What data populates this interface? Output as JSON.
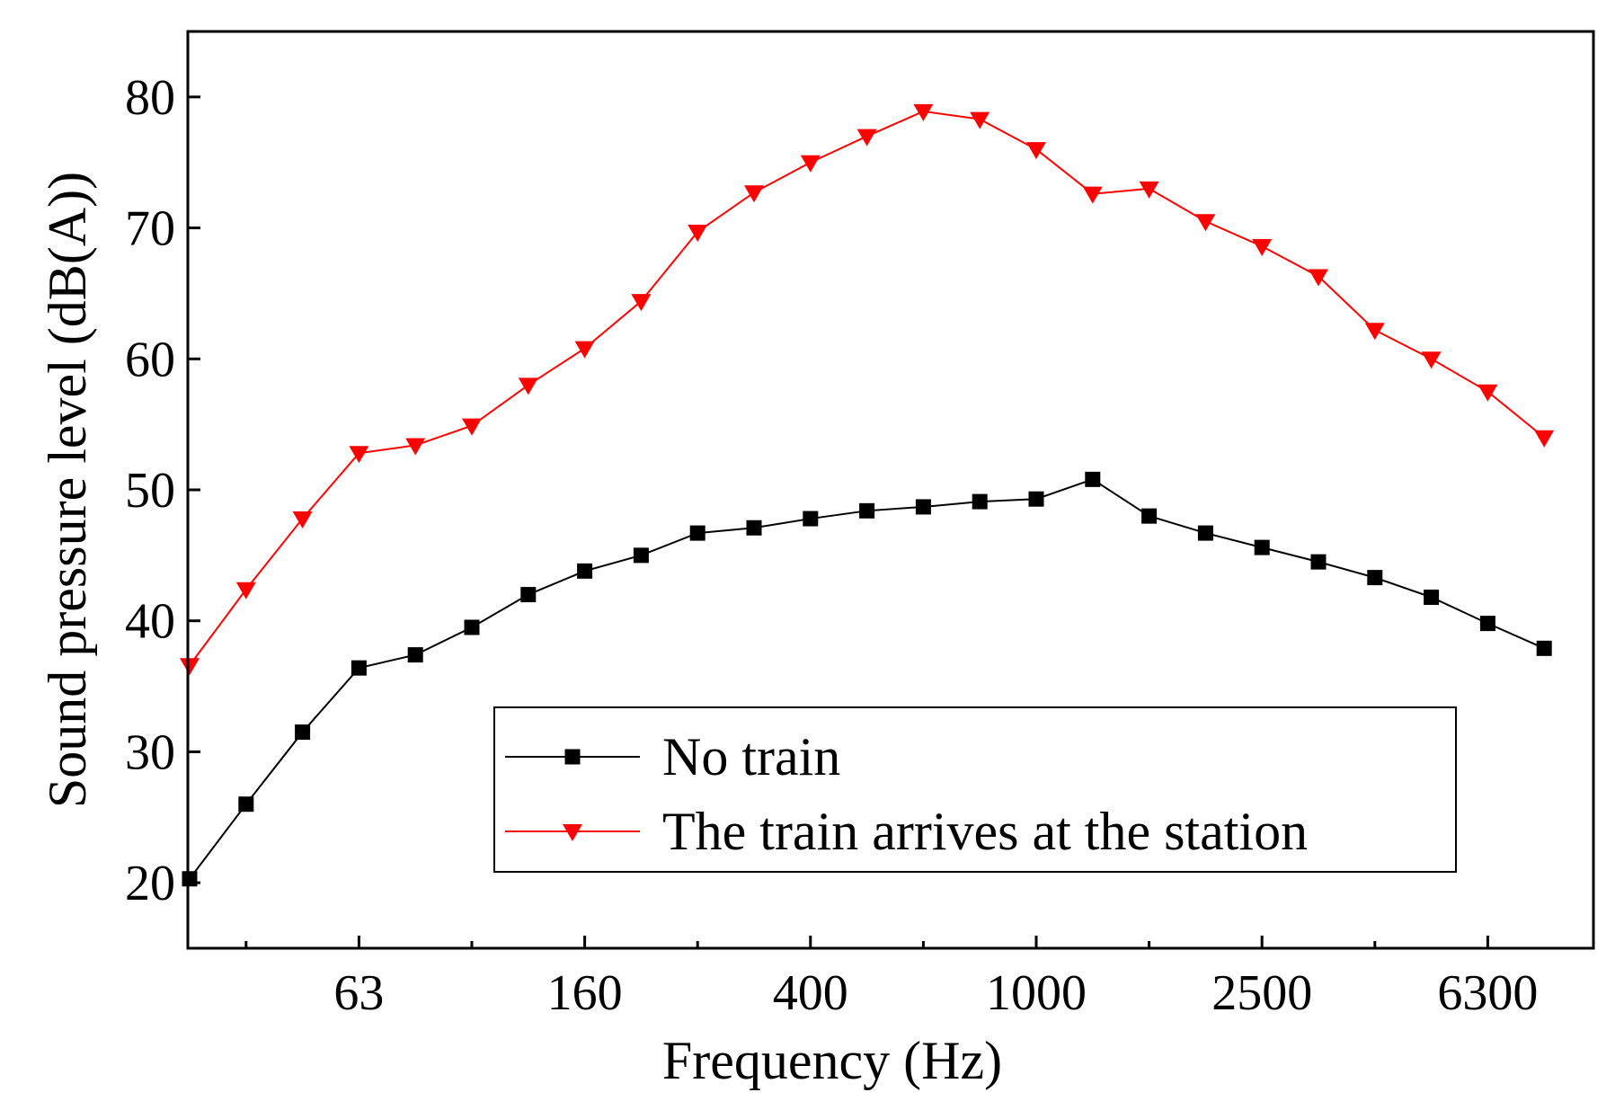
{
  "chart_data": {
    "type": "line",
    "title": "",
    "xlabel": "Frequency (Hz)",
    "ylabel": "Sound pressure level (dB(A))",
    "ylim": [
      15,
      85
    ],
    "yticks": [
      20,
      30,
      40,
      50,
      60,
      70,
      80
    ],
    "x_scale": "one-third octave bands (categorical)",
    "x_band_count": 25,
    "xtick_labels": [
      {
        "band_index": 3,
        "label": "63"
      },
      {
        "band_index": 7,
        "label": "160"
      },
      {
        "band_index": 11,
        "label": "400"
      },
      {
        "band_index": 15,
        "label": "1000"
      },
      {
        "band_index": 19,
        "label": "2500"
      },
      {
        "band_index": 23,
        "label": "6300"
      }
    ],
    "grid": false,
    "legend_position": "bottom-right",
    "series": [
      {
        "name": "No train",
        "color": "#000000",
        "marker": "square",
        "values": [
          20.3,
          26.0,
          31.5,
          36.4,
          37.4,
          39.5,
          42.0,
          43.8,
          45.0,
          46.7,
          47.1,
          47.8,
          48.4,
          48.7,
          49.1,
          49.3,
          50.8,
          48.0,
          46.7,
          45.6,
          44.5,
          43.3,
          41.8,
          39.8,
          37.9
        ]
      },
      {
        "name": "The train arrives at the station",
        "color": "#ff0000",
        "marker": "triangle-down",
        "values": [
          36.6,
          42.4,
          47.8,
          52.8,
          53.4,
          54.9,
          58.0,
          60.8,
          64.4,
          69.7,
          72.7,
          75.0,
          77.0,
          78.9,
          78.3,
          76.0,
          72.6,
          73.0,
          70.5,
          68.6,
          66.3,
          62.2,
          60.0,
          57.5,
          54.0
        ]
      }
    ]
  }
}
